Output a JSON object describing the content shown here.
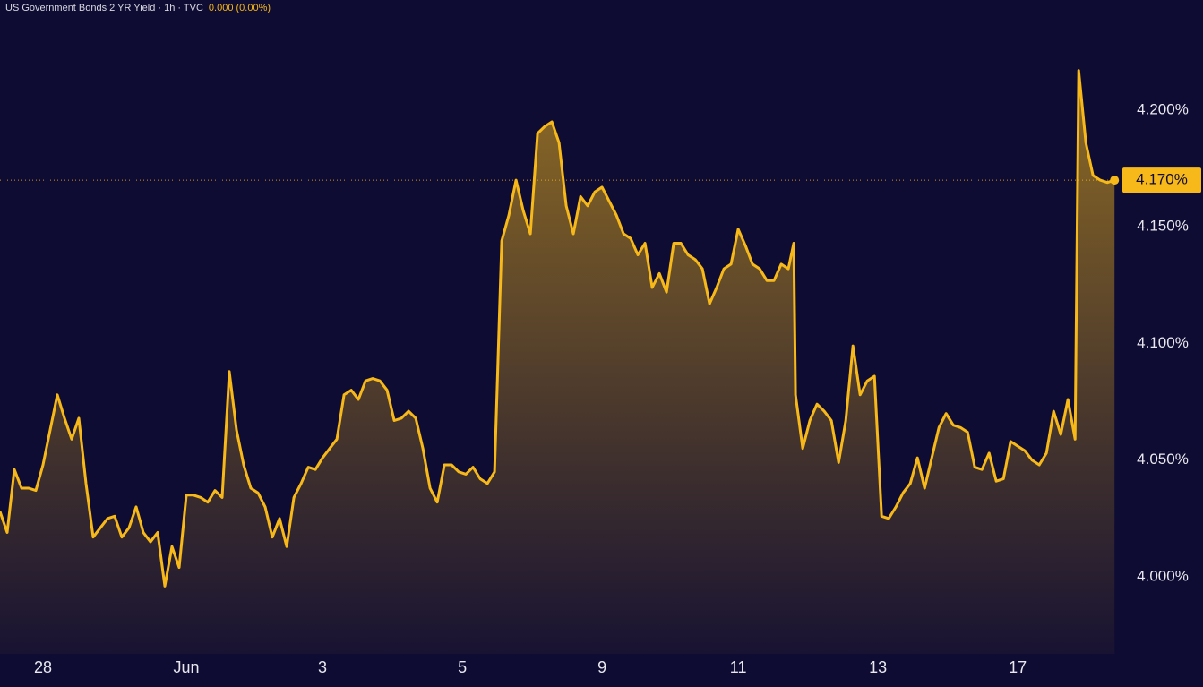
{
  "chart_data": {
    "type": "line",
    "title": "US Government Bonds 2 YR Yield · 1h · TVC",
    "change": "0.000 (0.00%)",
    "color": "#f7b919",
    "x": [
      0,
      1,
      2,
      3,
      4,
      5,
      6,
      7,
      8,
      9,
      10,
      11,
      12,
      13,
      14,
      15,
      16,
      17,
      18,
      19,
      20,
      21,
      22,
      23,
      24,
      25,
      26,
      27,
      28,
      29,
      30,
      31,
      32,
      33,
      34,
      35,
      36,
      37,
      38,
      39,
      40,
      41,
      42,
      43,
      44,
      45,
      46,
      47,
      48,
      49,
      50,
      51,
      52,
      53,
      54,
      55,
      56,
      57,
      58,
      59,
      60,
      61,
      62,
      63,
      64,
      65,
      66,
      67,
      68,
      69,
      70,
      71,
      72,
      73,
      74,
      75,
      76,
      77,
      78,
      79,
      80,
      81,
      82,
      83,
      84,
      85,
      86,
      87,
      88,
      89,
      90,
      91,
      92,
      93,
      94,
      95,
      96,
      97,
      98,
      99,
      100,
      101,
      102,
      103,
      104,
      105,
      106,
      107,
      108,
      109,
      110,
      110.75,
      111,
      112,
      113,
      114,
      115,
      116,
      117,
      118,
      119,
      120,
      121,
      122,
      123,
      124,
      125,
      126,
      127,
      128,
      129,
      130,
      131,
      132,
      133,
      134,
      135,
      136,
      137,
      138,
      139,
      140,
      141,
      142,
      143,
      144,
      145,
      146,
      147,
      148,
      149,
      150,
      150.5,
      151.5,
      152.5,
      153.5,
      154.5,
      155.5
    ],
    "values": [
      4.028,
      4.019,
      4.046,
      4.038,
      4.038,
      4.037,
      4.048,
      4.063,
      4.078,
      4.068,
      4.059,
      4.068,
      4.04,
      4.017,
      4.021,
      4.025,
      4.026,
      4.017,
      4.021,
      4.03,
      4.019,
      4.015,
      4.019,
      3.996,
      4.013,
      4.004,
      4.035,
      4.035,
      4.034,
      4.032,
      4.037,
      4.034,
      4.088,
      4.063,
      4.048,
      4.038,
      4.036,
      4.03,
      4.017,
      4.025,
      4.013,
      4.034,
      4.04,
      4.047,
      4.046,
      4.051,
      4.055,
      4.059,
      4.078,
      4.08,
      4.076,
      4.084,
      4.085,
      4.084,
      4.08,
      4.067,
      4.068,
      4.071,
      4.068,
      4.055,
      4.038,
      4.032,
      4.048,
      4.048,
      4.045,
      4.044,
      4.047,
      4.042,
      4.04,
      4.045,
      4.144,
      4.155,
      4.17,
      4.157,
      4.147,
      4.19,
      4.193,
      4.195,
      4.186,
      4.159,
      4.147,
      4.163,
      4.159,
      4.165,
      4.167,
      4.161,
      4.155,
      4.147,
      4.145,
      4.138,
      4.143,
      4.124,
      4.13,
      4.122,
      4.143,
      4.143,
      4.138,
      4.136,
      4.132,
      4.117,
      4.124,
      4.132,
      4.134,
      4.149,
      4.142,
      4.134,
      4.132,
      4.127,
      4.127,
      4.134,
      4.132,
      4.143,
      4.078,
      4.055,
      4.067,
      4.074,
      4.071,
      4.067,
      4.049,
      4.067,
      4.099,
      4.078,
      4.084,
      4.086,
      4.026,
      4.025,
      4.03,
      4.036,
      4.04,
      4.051,
      4.038,
      4.051,
      4.064,
      4.07,
      4.065,
      4.064,
      4.062,
      4.047,
      4.046,
      4.053,
      4.041,
      4.042,
      4.058,
      4.056,
      4.054,
      4.05,
      4.048,
      4.053,
      4.071,
      4.061,
      4.076,
      4.059,
      4.217,
      4.186,
      4.172,
      4.17,
      4.169,
      4.17
    ],
    "xlim": [
      0,
      155.6
    ],
    "xticks": [
      {
        "value": 6,
        "label": "28"
      },
      {
        "value": 26,
        "label": "Jun"
      },
      {
        "value": 45,
        "label": "3"
      },
      {
        "value": 64.5,
        "label": "5"
      },
      {
        "value": 84,
        "label": "9"
      },
      {
        "value": 103,
        "label": "11"
      },
      {
        "value": 122.5,
        "label": "13"
      },
      {
        "value": 142,
        "label": "17"
      }
    ],
    "ylim": [
      3.967,
      4.2472
    ],
    "yticks": [
      {
        "value": 4.0,
        "label": "4.000%"
      },
      {
        "value": 4.05,
        "label": "4.050%"
      },
      {
        "value": 4.1,
        "label": "4.100%"
      },
      {
        "value": 4.15,
        "label": "4.150%"
      },
      {
        "value": 4.2,
        "label": "4.200%"
      }
    ],
    "last_price": {
      "value": 4.17,
      "label": "4.170%"
    }
  }
}
